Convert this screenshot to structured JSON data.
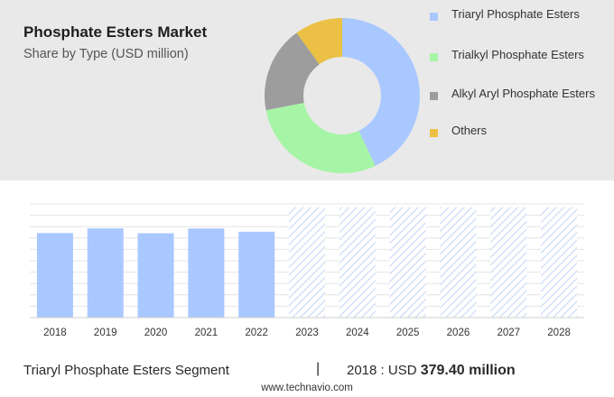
{
  "header": {
    "title": "Phosphate Esters Market",
    "subtitle": "Share by Type (USD million)"
  },
  "legend": [
    {
      "label": "Triaryl Phosphate Esters",
      "color": "#a9c8ff"
    },
    {
      "label": "Trialkyl Phosphate Esters",
      "color": "#a6f5a6"
    },
    {
      "label": "Alkyl Aryl Phosphate Esters",
      "color": "#9d9d9d"
    },
    {
      "label": "Others",
      "color": "#ebc044"
    }
  ],
  "chart_data": [
    {
      "type": "pie",
      "title": "Phosphate Esters Market",
      "subtitle": "Share by Type (USD million)",
      "donut": true,
      "slices": [
        {
          "label": "Triaryl Phosphate Esters",
          "value": 43,
          "color": "#a9c8ff"
        },
        {
          "label": "Trialkyl Phosphate Esters",
          "value": 29,
          "color": "#a6f5a6"
        },
        {
          "label": "Alkyl Aryl Phosphate Esters",
          "value": 18,
          "color": "#9d9d9d"
        },
        {
          "label": "Others",
          "value": 10,
          "color": "#ebc044"
        }
      ]
    },
    {
      "type": "bar",
      "categories": [
        "2018",
        "2019",
        "2020",
        "2021",
        "2022",
        "2023",
        "2024",
        "2025",
        "2026",
        "2027",
        "2028"
      ],
      "values": [
        379.4,
        400.5,
        378.5,
        399.8,
        385.2,
        495,
        495,
        495,
        495,
        495,
        495
      ],
      "forecast_from": "2023",
      "bar_color": "#a9c8ff",
      "forecast_pattern": "diagonal-hatch",
      "ylim": [
        0,
        510
      ],
      "grid": true,
      "y_axis_visible": false
    }
  ],
  "footer": {
    "segment": "Triaryl Phosphate Esters Segment",
    "divider": "|",
    "value_prefix": "2018 : USD",
    "value": "379.40 million"
  },
  "source": "www.technavio.com"
}
